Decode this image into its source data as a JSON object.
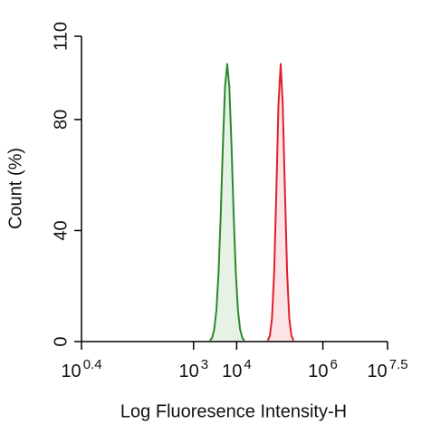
{
  "chart_data": {
    "type": "line",
    "xlabel": "Log Fluoresence Intensity-H",
    "ylabel": "Count  (%)",
    "xscale": "log",
    "xlim": [
      2.5118864315,
      31622776.6
    ],
    "xticks": [
      {
        "value": 2.5118864315,
        "label": "10",
        "exponent": "0.4"
      },
      {
        "value": 1000,
        "label": "10",
        "exponent": "3"
      },
      {
        "value": 10000,
        "label": "10",
        "exponent": "4"
      },
      {
        "value": 1000000,
        "label": "10",
        "exponent": "6"
      },
      {
        "value": 31622776.6,
        "label": "10",
        "exponent": "7.5"
      }
    ],
    "ylim": [
      0,
      110
    ],
    "yticks": [
      0,
      40,
      80,
      110
    ],
    "grid": false,
    "series": [
      {
        "color": "#2b8a2b",
        "fill": "#e6f2e6",
        "x": [
          2400,
          2690,
          3020,
          3390,
          3800,
          4270,
          4790,
          5370,
          6030,
          6760,
          7590,
          8510,
          9550,
          10700,
          12000,
          13500,
          15100
        ],
        "values": [
          0.4,
          1.4,
          4.4,
          11.4,
          24.9,
          45.8,
          70.7,
          91.7,
          100,
          91.7,
          70.7,
          45.8,
          24.9,
          11.4,
          4.4,
          1.4,
          0.4
        ]
      },
      {
        "color": "#e0202a",
        "fill": "#fbe3e6",
        "x": [
          52500,
          58900,
          66100,
          74100,
          83200,
          93300,
          105000,
          117000,
          132000,
          148000,
          166000,
          186000,
          209000
        ],
        "values": [
          0.4,
          2.1,
          8.5,
          24.9,
          53.9,
          85.7,
          100,
          85.7,
          53.9,
          24.9,
          8.5,
          2.1,
          0.4
        ]
      }
    ]
  }
}
